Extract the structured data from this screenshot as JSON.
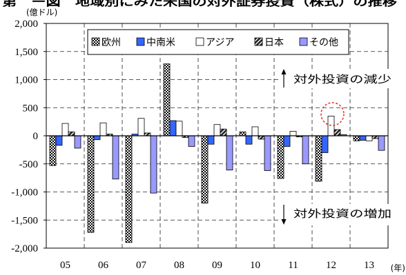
{
  "chart_data": {
    "type": "bar",
    "title": "第　ー図　地域別にみた米国の対外証券投資（株式）の推移",
    "ylabel": "(億ドル)",
    "xlabel": "(年)",
    "categories": [
      "05",
      "06",
      "07",
      "08",
      "09",
      "10",
      "11",
      "12",
      "13"
    ],
    "y_ticks": [
      "2,000",
      "1,500",
      "1,000",
      "500",
      "0",
      "-500",
      "-1,000",
      "-1,500",
      "-2,000"
    ],
    "ylim": [
      -2000,
      2000
    ],
    "grid": true,
    "legend_position": "top-center",
    "series": [
      {
        "name": "欧州",
        "pattern": "checkered",
        "color": "#000000",
        "values": [
          -530,
          -1720,
          -1900,
          1280,
          -1200,
          70,
          -760,
          -810,
          -90
        ]
      },
      {
        "name": "中南米",
        "pattern": "solid",
        "color": "#3366ff",
        "values": [
          -170,
          -70,
          30,
          270,
          -150,
          -150,
          -190,
          -300,
          -80
        ]
      },
      {
        "name": "アジア",
        "pattern": "solid",
        "color": "#ffffff",
        "values": [
          220,
          230,
          310,
          260,
          200,
          160,
          80,
          350,
          -90
        ]
      },
      {
        "name": "日本",
        "pattern": "diagonal-hatch",
        "color": "#000000",
        "values": [
          70,
          30,
          50,
          -30,
          120,
          -60,
          -20,
          110,
          -50
        ]
      },
      {
        "name": "その他",
        "pattern": "solid",
        "color": "#9999ff",
        "values": [
          -220,
          -770,
          -1020,
          -190,
          -610,
          -620,
          -500,
          20,
          -260
        ]
      }
    ],
    "annotations": [
      {
        "text": "対外投資の減少",
        "arrow": "up"
      },
      {
        "text": "対外投資の増加",
        "arrow": "down"
      }
    ],
    "highlight": {
      "category_index": 7,
      "series_index": 2,
      "shape": "dashed-circle",
      "color": "#e8362c"
    }
  }
}
